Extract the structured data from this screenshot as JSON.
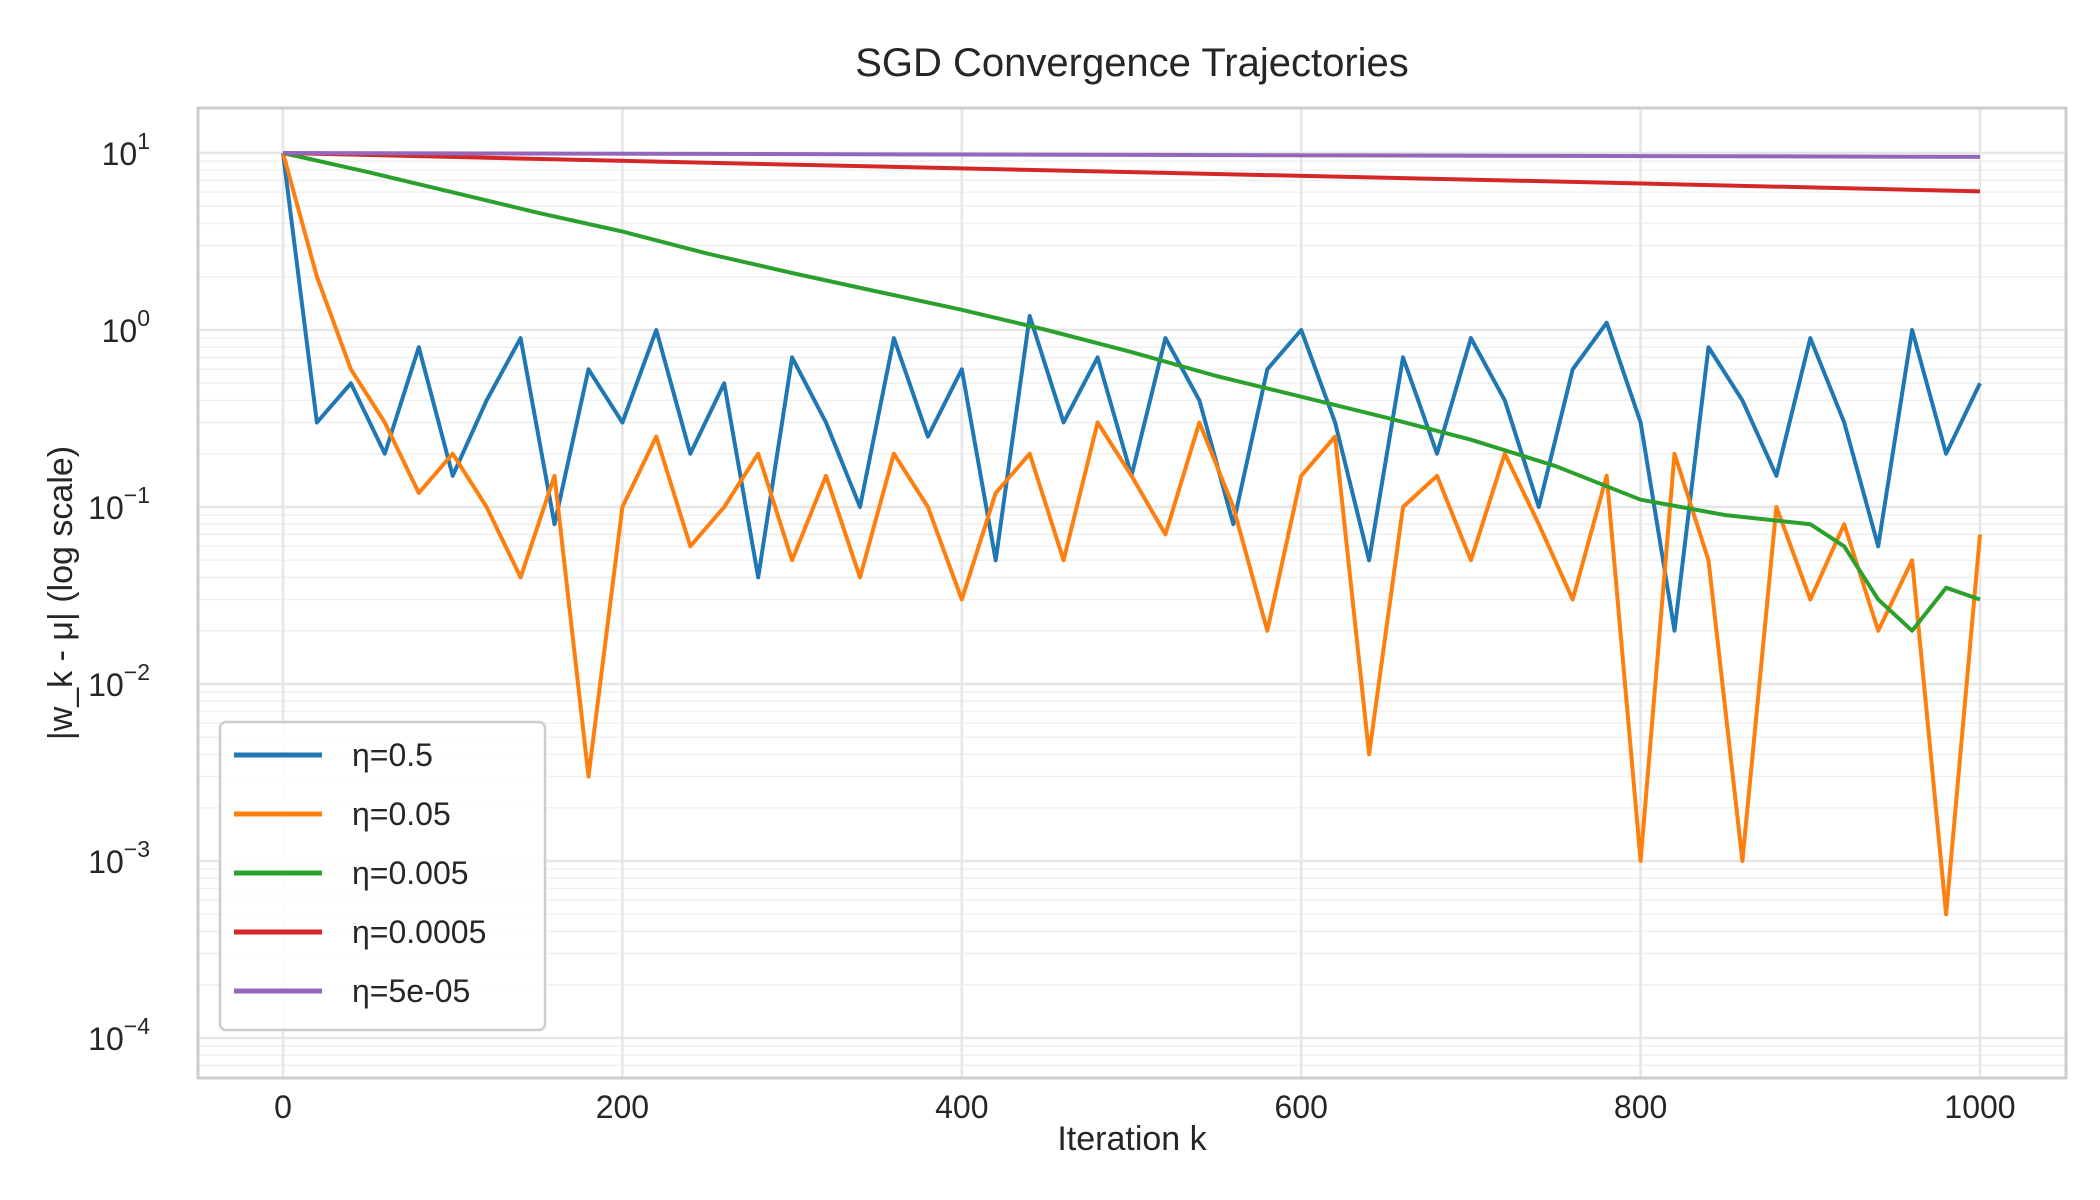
{
  "chart_data": {
    "type": "line",
    "title": "SGD Convergence Trajectories",
    "xlabel": "Iteration k",
    "ylabel": "|w_k - μ| (log scale)",
    "xlim": [
      -50,
      1050
    ],
    "ylim": [
      6e-05,
      17
    ],
    "yscale": "log",
    "grid": true,
    "legend_position": "lower-left",
    "x_ticks": [
      "0",
      "200",
      "400",
      "600",
      "800",
      "1000"
    ],
    "y_ticks": [
      {
        "base": "10",
        "exp": "1"
      },
      {
        "base": "10",
        "exp": "0"
      },
      {
        "base": "10",
        "exp": "−1"
      },
      {
        "base": "10",
        "exp": "−2"
      },
      {
        "base": "10",
        "exp": "−3"
      },
      {
        "base": "10",
        "exp": "−4"
      }
    ],
    "series": [
      {
        "name": "η=0.5",
        "color": "#1f77b4",
        "x": [
          0,
          20,
          40,
          60,
          80,
          100,
          120,
          140,
          160,
          180,
          200,
          220,
          240,
          260,
          280,
          300,
          320,
          340,
          360,
          380,
          400,
          420,
          440,
          460,
          480,
          500,
          520,
          540,
          560,
          580,
          600,
          620,
          640,
          660,
          680,
          700,
          720,
          740,
          760,
          780,
          800,
          820,
          840,
          860,
          880,
          900,
          920,
          940,
          960,
          980,
          1000
        ],
        "y": [
          10,
          0.3,
          0.5,
          0.2,
          0.8,
          0.15,
          0.4,
          0.9,
          0.08,
          0.6,
          0.3,
          1.0,
          0.2,
          0.5,
          0.04,
          0.7,
          0.3,
          0.1,
          0.9,
          0.25,
          0.6,
          0.05,
          1.2,
          0.3,
          0.7,
          0.15,
          0.9,
          0.4,
          0.08,
          0.6,
          1.0,
          0.3,
          0.05,
          0.7,
          0.2,
          0.9,
          0.4,
          0.1,
          0.6,
          1.1,
          0.3,
          0.02,
          0.8,
          0.4,
          0.15,
          0.9,
          0.3,
          0.06,
          1.0,
          0.2,
          0.5
        ]
      },
      {
        "name": "η=0.05",
        "color": "#ff7f0e",
        "x": [
          0,
          20,
          40,
          60,
          80,
          100,
          120,
          140,
          160,
          180,
          200,
          220,
          240,
          260,
          280,
          300,
          320,
          340,
          360,
          380,
          400,
          420,
          440,
          460,
          480,
          500,
          520,
          540,
          560,
          580,
          600,
          620,
          640,
          660,
          680,
          700,
          720,
          740,
          760,
          780,
          800,
          820,
          840,
          860,
          880,
          900,
          920,
          940,
          960,
          980,
          1000
        ],
        "y": [
          10,
          2.0,
          0.6,
          0.3,
          0.12,
          0.2,
          0.1,
          0.04,
          0.15,
          0.003,
          0.1,
          0.25,
          0.06,
          0.1,
          0.2,
          0.05,
          0.15,
          0.04,
          0.2,
          0.1,
          0.03,
          0.12,
          0.2,
          0.05,
          0.3,
          0.15,
          0.07,
          0.3,
          0.1,
          0.02,
          0.15,
          0.25,
          0.004,
          0.1,
          0.15,
          0.05,
          0.2,
          0.08,
          0.03,
          0.15,
          0.001,
          0.2,
          0.05,
          0.001,
          0.1,
          0.03,
          0.08,
          0.02,
          0.05,
          0.0005,
          0.07
        ]
      },
      {
        "name": "η=0.005",
        "color": "#2ca02c",
        "x": [
          0,
          50,
          100,
          150,
          200,
          250,
          300,
          350,
          400,
          450,
          500,
          550,
          600,
          650,
          700,
          750,
          800,
          850,
          900,
          920,
          940,
          960,
          980,
          1000
        ],
        "y": [
          10,
          7.8,
          6.0,
          4.6,
          3.6,
          2.7,
          2.1,
          1.65,
          1.3,
          1.0,
          0.75,
          0.55,
          0.42,
          0.32,
          0.24,
          0.17,
          0.11,
          0.09,
          0.08,
          0.06,
          0.03,
          0.02,
          0.035,
          0.03
        ]
      },
      {
        "name": "η=0.0005",
        "color": "#d62728",
        "x": [
          0,
          250,
          500,
          750,
          1000
        ],
        "y": [
          10,
          8.8,
          7.8,
          6.9,
          6.07
        ]
      },
      {
        "name": "η=5e-05",
        "color": "#9467bd",
        "x": [
          0,
          250,
          500,
          750,
          1000
        ],
        "y": [
          10,
          9.88,
          9.75,
          9.63,
          9.5
        ]
      }
    ]
  }
}
